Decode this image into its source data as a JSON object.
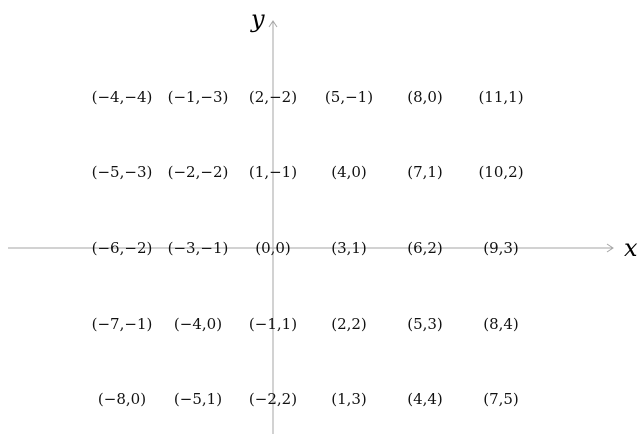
{
  "axes": {
    "x_label": "x",
    "y_label": "y"
  },
  "grid": {
    "rows": [
      [
        "(−4,−4)",
        "(−1,−3)",
        "(2,−2)",
        "(5,−1)",
        "(8,0)",
        "(11,1)"
      ],
      [
        "(−5,−3)",
        "(−2,−2)",
        "(1,−1)",
        "(4,0)",
        "(7,1)",
        "(10,2)"
      ],
      [
        "(−6,−2)",
        "(−3,−1)",
        "(0,0)",
        "(3,1)",
        "(6,2)",
        "(9,3)"
      ],
      [
        "(−7,−1)",
        "(−4,0)",
        "(−1,1)",
        "(2,2)",
        "(5,3)",
        "(8,4)"
      ],
      [
        "(−8,0)",
        "(−5,1)",
        "(−2,2)",
        "(1,3)",
        "(4,4)",
        "(7,5)"
      ]
    ]
  },
  "colors": {
    "axis": "#a6a6a6",
    "text": "#111111"
  }
}
